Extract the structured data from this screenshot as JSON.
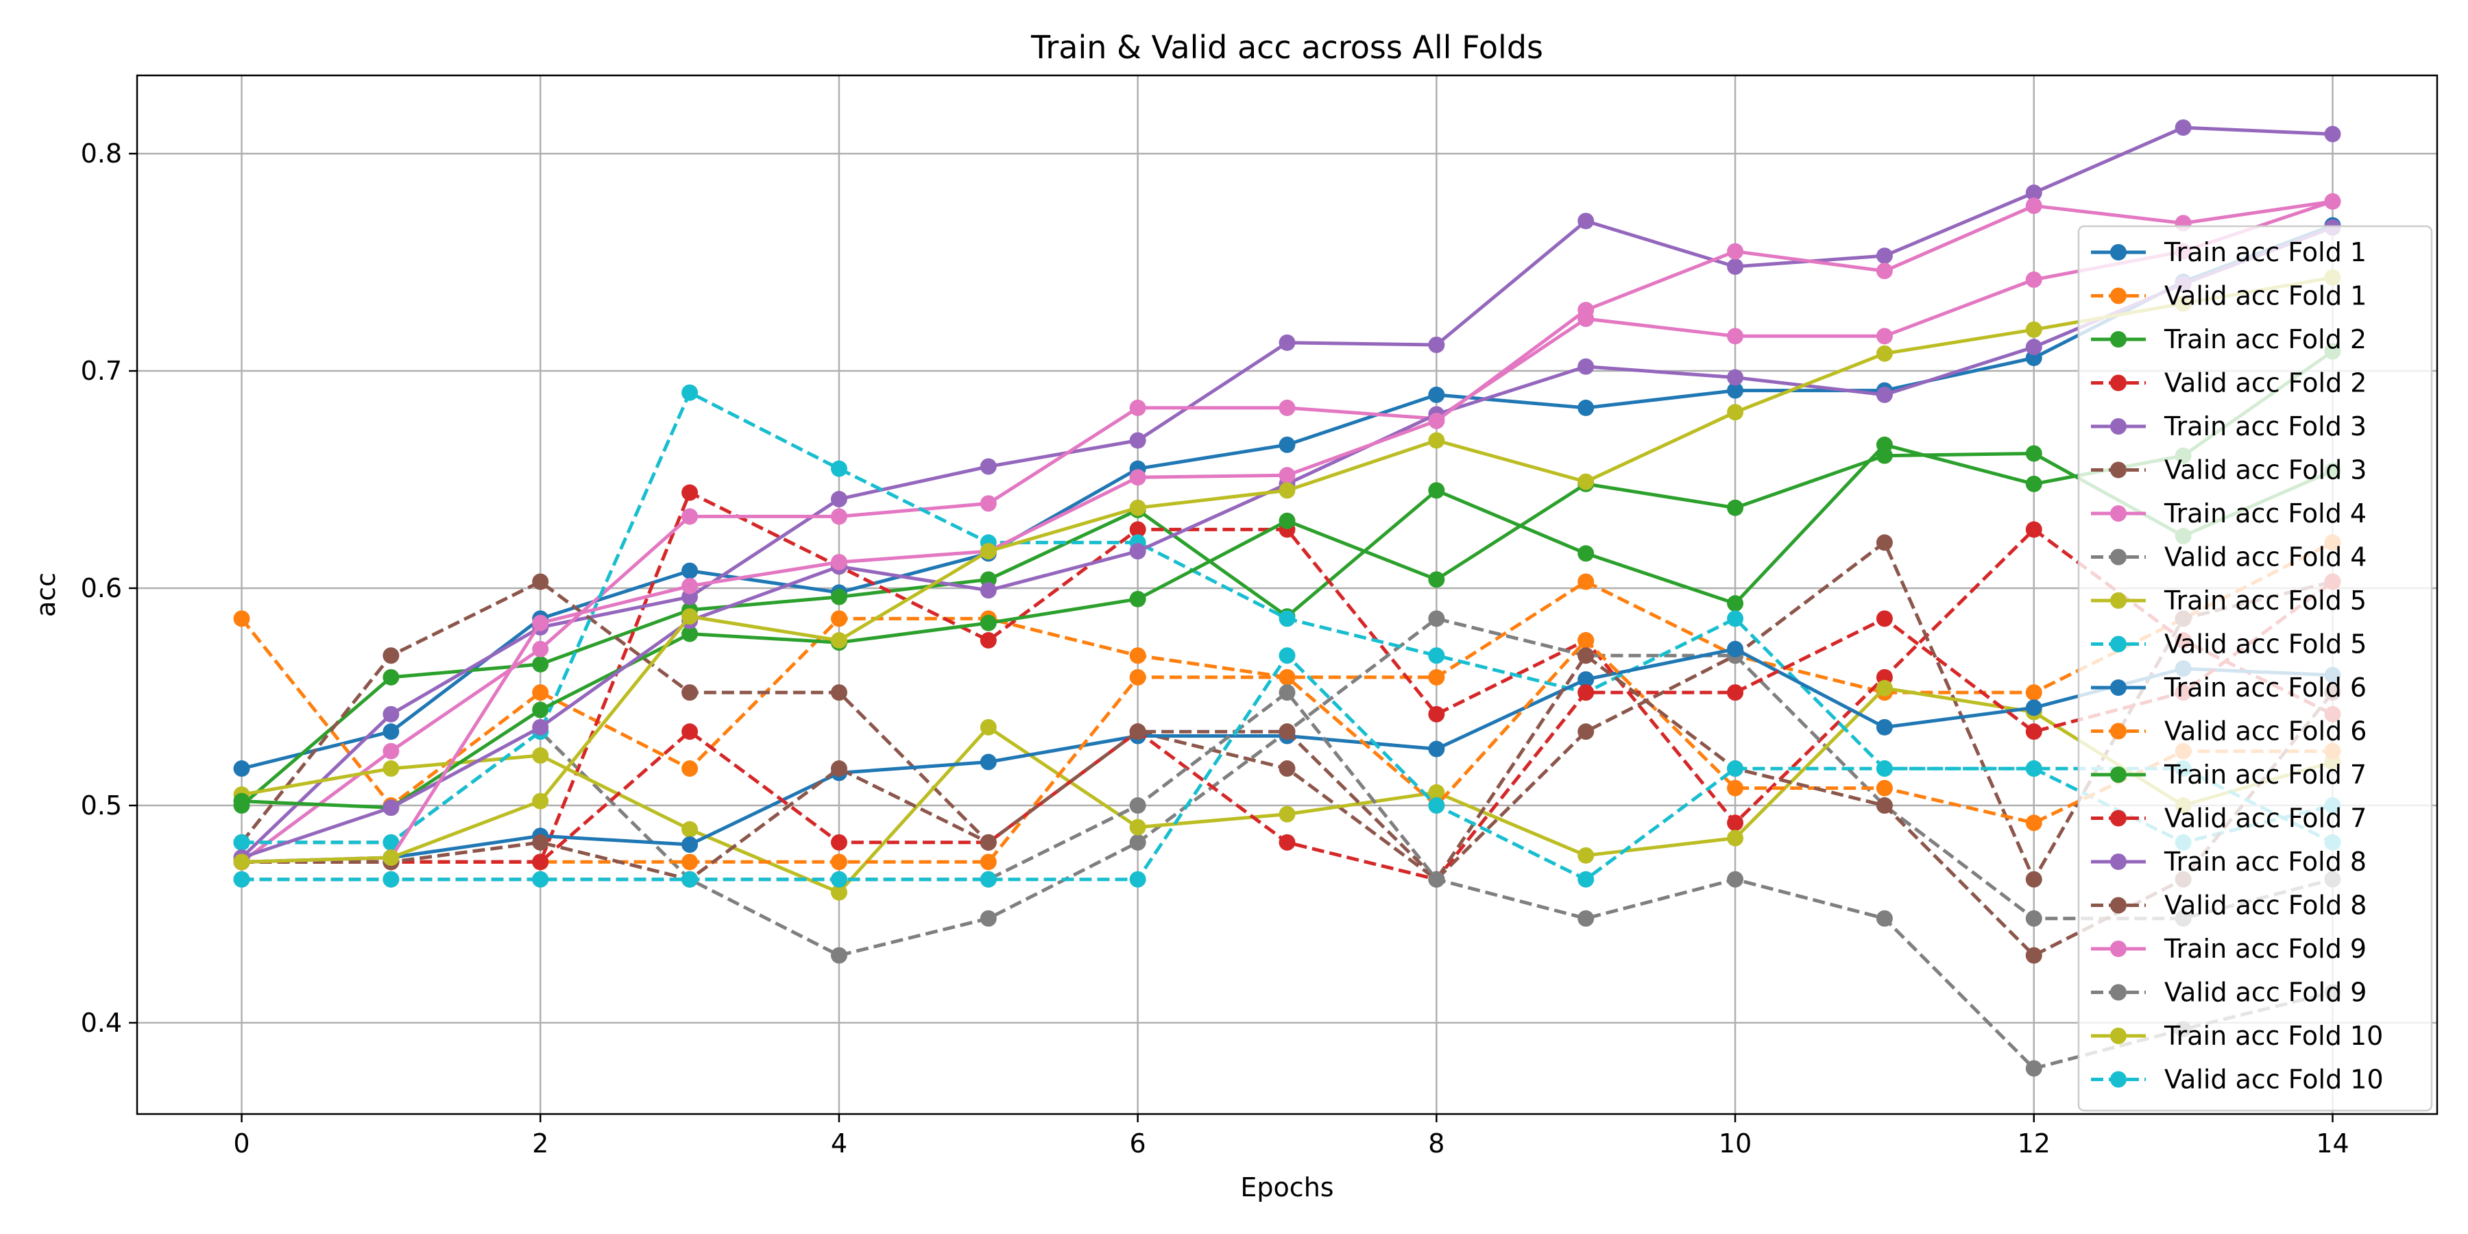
{
  "chart_data": {
    "type": "line",
    "title": "Train & Valid acc across All Folds",
    "xlabel": "Epochs",
    "ylabel": "acc",
    "xlim": [
      -0.7,
      14.7
    ],
    "ylim": [
      0.358,
      0.836
    ],
    "xticks": [
      0,
      2,
      4,
      6,
      8,
      10,
      12,
      14
    ],
    "yticks": [
      0.4,
      0.5,
      0.6,
      0.7,
      0.8
    ],
    "ytick_labels": [
      "0.4",
      "0.5",
      "0.6",
      "0.7",
      "0.8"
    ],
    "grid": true,
    "legend_position": "right",
    "x": [
      0,
      1,
      2,
      3,
      4,
      5,
      6,
      7,
      8,
      9,
      10,
      11,
      12,
      13,
      14
    ],
    "series": [
      {
        "name": "Train acc Fold 1",
        "style": "solid",
        "color": "#1f77b4",
        "values": [
          0.517,
          0.534,
          0.586,
          0.608,
          0.598,
          0.616,
          0.655,
          0.666,
          0.689,
          0.683,
          0.691,
          0.691,
          0.706,
          0.741,
          0.767
        ]
      },
      {
        "name": "Valid acc Fold 1",
        "style": "dashed",
        "color": "#ff7f0e",
        "values": [
          0.586,
          0.5,
          0.552,
          0.517,
          0.586,
          0.586,
          0.569,
          0.559,
          0.559,
          0.603,
          0.569,
          0.552,
          0.552,
          0.586,
          0.621
        ]
      },
      {
        "name": "Train acc Fold 2",
        "style": "solid",
        "color": "#2ca02c",
        "values": [
          0.5,
          0.559,
          0.565,
          0.59,
          0.596,
          0.604,
          0.636,
          0.587,
          0.645,
          0.616,
          0.593,
          0.666,
          0.648,
          0.661,
          0.709
        ]
      },
      {
        "name": "Valid acc Fold 2",
        "style": "dashed",
        "color": "#d62728",
        "values": [
          0.474,
          0.474,
          0.474,
          0.644,
          0.61,
          0.576,
          0.627,
          0.627,
          0.542,
          0.576,
          0.492,
          0.559,
          0.627,
          0.576,
          0.542
        ]
      },
      {
        "name": "Train acc Fold 3",
        "style": "solid",
        "color": "#9467bd",
        "values": [
          0.476,
          0.542,
          0.582,
          0.596,
          0.641,
          0.656,
          0.668,
          0.713,
          0.712,
          0.769,
          0.748,
          0.753,
          0.782,
          0.812,
          0.809
        ]
      },
      {
        "name": "Valid acc Fold 3",
        "style": "dashed",
        "color": "#8c564b",
        "values": [
          0.483,
          0.569,
          0.603,
          0.552,
          0.552,
          0.483,
          0.534,
          0.517,
          0.466,
          0.534,
          0.569,
          0.621,
          0.466,
          0.586,
          0.603
        ]
      },
      {
        "name": "Train acc Fold 4",
        "style": "solid",
        "color": "#e377c2",
        "values": [
          0.474,
          0.525,
          0.572,
          0.633,
          0.633,
          0.639,
          0.683,
          0.683,
          0.678,
          0.724,
          0.716,
          0.716,
          0.742,
          0.755,
          0.778
        ]
      },
      {
        "name": "Valid acc Fold 4",
        "style": "dashed",
        "color": "#7f7f7f",
        "values": [
          0.483,
          0.483,
          0.534,
          0.466,
          0.431,
          0.448,
          0.483,
          0.534,
          0.586,
          0.569,
          0.569,
          0.5,
          0.448,
          0.448,
          0.466
        ]
      },
      {
        "name": "Train acc Fold 5",
        "style": "solid",
        "color": "#bcbd22",
        "values": [
          0.505,
          0.517,
          0.523,
          0.489,
          0.46,
          0.536,
          0.49,
          0.496,
          0.506,
          0.477,
          0.485,
          0.554,
          0.543,
          0.5,
          0.52
        ]
      },
      {
        "name": "Valid acc Fold 5",
        "style": "dashed",
        "color": "#17becf",
        "values": [
          0.483,
          0.483,
          0.534,
          0.69,
          0.655,
          0.621,
          0.621,
          0.586,
          0.569,
          0.552,
          0.586,
          0.517,
          0.517,
          0.483,
          0.5
        ]
      },
      {
        "name": "Train acc Fold 6",
        "style": "solid",
        "color": "#1f77b4",
        "values": [
          0.474,
          0.476,
          0.486,
          0.482,
          0.515,
          0.52,
          0.532,
          0.532,
          0.526,
          0.558,
          0.572,
          0.536,
          0.545,
          0.563,
          0.56
        ]
      },
      {
        "name": "Valid acc Fold 6",
        "style": "dashed",
        "color": "#ff7f0e",
        "values": [
          0.474,
          0.474,
          0.474,
          0.474,
          0.474,
          0.474,
          0.559,
          0.559,
          0.5,
          0.576,
          0.508,
          0.508,
          0.492,
          0.525,
          0.525
        ]
      },
      {
        "name": "Train acc Fold 7",
        "style": "solid",
        "color": "#2ca02c",
        "values": [
          0.502,
          0.499,
          0.544,
          0.579,
          0.575,
          0.584,
          0.595,
          0.631,
          0.604,
          0.648,
          0.637,
          0.661,
          0.662,
          0.624,
          0.654
        ]
      },
      {
        "name": "Valid acc Fold 7",
        "style": "dashed",
        "color": "#d62728",
        "values": [
          0.474,
          0.474,
          0.474,
          0.534,
          0.483,
          0.483,
          0.534,
          0.483,
          0.466,
          0.552,
          0.552,
          0.586,
          0.534,
          0.552,
          0.603
        ]
      },
      {
        "name": "Train acc Fold 8",
        "style": "solid",
        "color": "#9467bd",
        "values": [
          0.476,
          0.499,
          0.536,
          0.585,
          0.61,
          0.599,
          0.617,
          0.648,
          0.68,
          0.702,
          0.697,
          0.689,
          0.711,
          0.74,
          0.766
        ]
      },
      {
        "name": "Valid acc Fold 8",
        "style": "dashed",
        "color": "#8c564b",
        "values": [
          0.474,
          0.474,
          0.483,
          0.466,
          0.517,
          0.483,
          0.534,
          0.534,
          0.466,
          0.569,
          0.517,
          0.5,
          0.431,
          0.466,
          0.552
        ]
      },
      {
        "name": "Train acc Fold 9",
        "style": "solid",
        "color": "#e377c2",
        "values": [
          0.474,
          0.476,
          0.584,
          0.601,
          0.612,
          0.617,
          0.651,
          0.652,
          0.677,
          0.728,
          0.755,
          0.746,
          0.776,
          0.768,
          0.778
        ]
      },
      {
        "name": "Valid acc Fold 9",
        "style": "dashed",
        "color": "#7f7f7f",
        "values": [
          0.466,
          0.466,
          0.466,
          0.466,
          0.466,
          0.466,
          0.5,
          0.552,
          0.466,
          0.448,
          0.466,
          0.448,
          0.379,
          0.397,
          0.414
        ]
      },
      {
        "name": "Train acc Fold 10",
        "style": "solid",
        "color": "#bcbd22",
        "values": [
          0.474,
          0.476,
          0.502,
          0.587,
          0.576,
          0.617,
          0.637,
          0.645,
          0.668,
          0.649,
          0.681,
          0.708,
          0.719,
          0.731,
          0.743
        ]
      },
      {
        "name": "Valid acc Fold 10",
        "style": "dashed",
        "color": "#17becf",
        "values": [
          0.466,
          0.466,
          0.466,
          0.466,
          0.466,
          0.466,
          0.466,
          0.569,
          0.5,
          0.466,
          0.517,
          0.517,
          0.517,
          0.517,
          0.483
        ]
      }
    ]
  }
}
